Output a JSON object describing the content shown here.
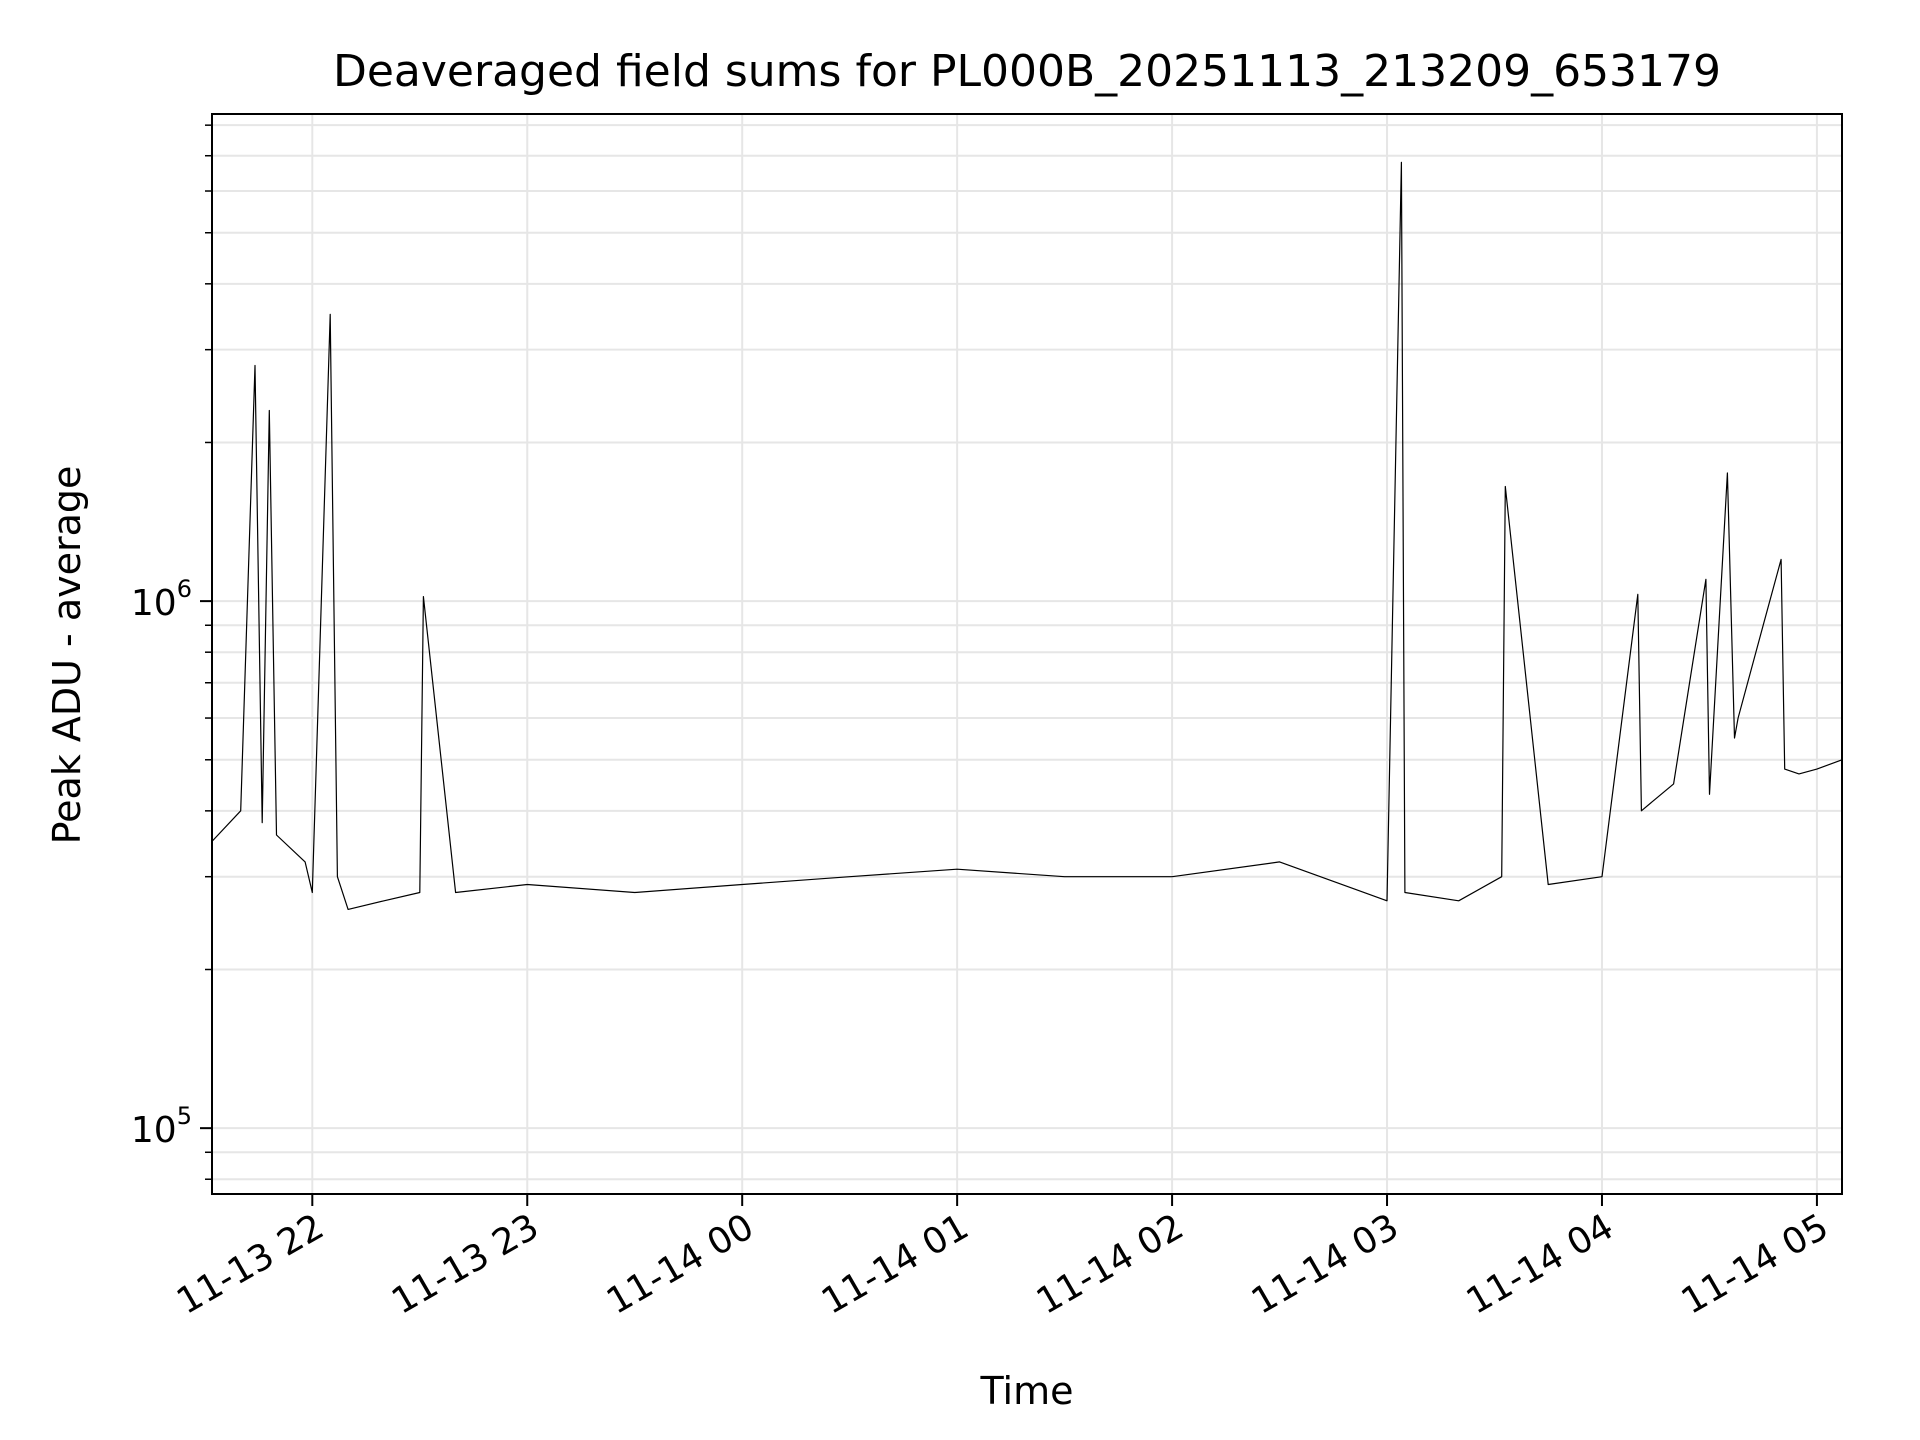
{
  "chart_data": {
    "type": "line",
    "title": "Deaveraged field sums for PL000B_20251113_213209_653179",
    "xlabel": "Time",
    "ylabel": "Peak ADU - average",
    "x_scale": "time",
    "y_scale": "log",
    "xlim": [
      "2025-11-13T21:32:00",
      "2025-11-14T05:07:00"
    ],
    "ylim": [
      75000,
      8400000
    ],
    "x_ticks": [
      {
        "value": "2025-11-13T22:00:00",
        "label": "11-13 22"
      },
      {
        "value": "2025-11-13T23:00:00",
        "label": "11-13 23"
      },
      {
        "value": "2025-11-14T00:00:00",
        "label": "11-14 00"
      },
      {
        "value": "2025-11-14T01:00:00",
        "label": "11-14 01"
      },
      {
        "value": "2025-11-14T02:00:00",
        "label": "11-14 02"
      },
      {
        "value": "2025-11-14T03:00:00",
        "label": "11-14 03"
      },
      {
        "value": "2025-11-14T04:00:00",
        "label": "11-14 04"
      },
      {
        "value": "2025-11-14T05:00:00",
        "label": "11-14 05"
      }
    ],
    "y_ticks": [
      {
        "value": 100000,
        "base": "10",
        "exp": "5"
      },
      {
        "value": 1000000,
        "base": "10",
        "exp": "6"
      }
    ],
    "grid": true,
    "line_color": "#000000",
    "grid_color": "#e6e6e6",
    "series": [
      {
        "x": [
          "2025-11-13T21:32:00",
          "2025-11-13T21:40:00",
          "2025-11-13T21:44:00",
          "2025-11-13T21:46:00",
          "2025-11-13T21:48:00",
          "2025-11-13T21:50:00",
          "2025-11-13T21:58:00",
          "2025-11-13T22:00:00",
          "2025-11-13T22:05:00",
          "2025-11-13T22:07:00",
          "2025-11-13T22:10:00",
          "2025-11-13T22:20:00",
          "2025-11-13T22:30:00",
          "2025-11-13T22:31:00",
          "2025-11-13T22:40:00",
          "2025-11-13T23:00:00",
          "2025-11-13T23:30:00",
          "2025-11-14T00:00:00",
          "2025-11-14T00:30:00",
          "2025-11-14T01:00:00",
          "2025-11-14T01:30:00",
          "2025-11-14T02:00:00",
          "2025-11-14T02:30:00",
          "2025-11-14T03:00:00",
          "2025-11-14T03:04:00",
          "2025-11-14T03:05:00",
          "2025-11-14T03:20:00",
          "2025-11-14T03:32:00",
          "2025-11-14T03:33:00",
          "2025-11-14T03:45:00",
          "2025-11-14T04:00:00",
          "2025-11-14T04:10:00",
          "2025-11-14T04:11:00",
          "2025-11-14T04:20:00",
          "2025-11-14T04:29:00",
          "2025-11-14T04:30:00",
          "2025-11-14T04:35:00",
          "2025-11-14T04:37:00",
          "2025-11-14T04:38:00",
          "2025-11-14T04:45:00",
          "2025-11-14T04:50:00",
          "2025-11-14T04:51:00",
          "2025-11-14T04:55:00",
          "2025-11-14T05:00:00",
          "2025-11-14T05:07:00"
        ],
        "y": [
          350000,
          400000,
          2800000,
          380000,
          2300000,
          360000,
          320000,
          280000,
          3500000,
          300000,
          260000,
          270000,
          280000,
          1020000,
          280000,
          290000,
          280000,
          290000,
          300000,
          310000,
          300000,
          300000,
          320000,
          270000,
          6800000,
          280000,
          270000,
          300000,
          1650000,
          290000,
          300000,
          1030000,
          400000,
          450000,
          1100000,
          430000,
          1750000,
          550000,
          600000,
          900000,
          1200000,
          480000,
          470000,
          480000,
          500000
        ]
      }
    ]
  }
}
